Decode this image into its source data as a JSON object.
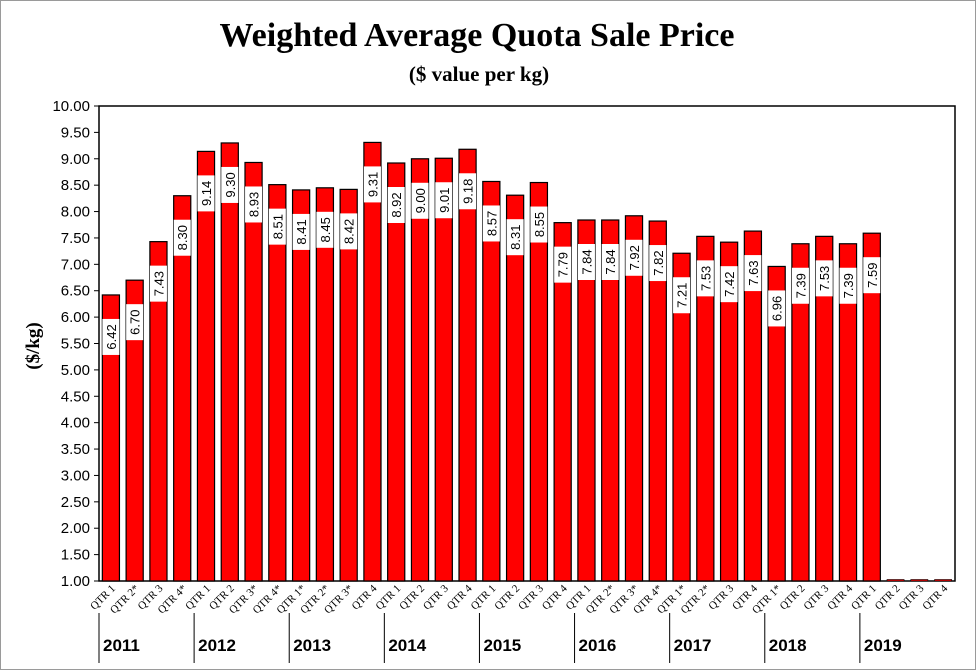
{
  "chart_data": {
    "type": "bar",
    "title": "Weighted Average Quota Sale Price",
    "subtitle": "($ value per kg)",
    "ylabel": "($/kg)",
    "xlabel": "",
    "ylim": [
      1.0,
      10.0
    ],
    "ytick_step": 0.5,
    "grid": false,
    "legend": "none",
    "bar_color": "#ff0000",
    "categories": [
      "QTR 1",
      "QTR 2*",
      "QTR 3",
      "QTR 4*",
      "QTR 1",
      "QTR 2",
      "QTR 3*",
      "QTR 4*",
      "QTR 1*",
      "QTR 2*",
      "QTR 3*",
      "QTR 4",
      "QTR 1",
      "QTR 2",
      "QTR 3",
      "QTR 4",
      "QTR 1",
      "QTR 2",
      "QTR 3",
      "QTR 4",
      "QTR 1",
      "QTR 2*",
      "QTR 3*",
      "QTR 4*",
      "QTR 1*",
      "QTR 2*",
      "QTR 3",
      "QTR 4",
      "QTR 1*",
      "QTR 2",
      "QTR 3",
      "QTR 4",
      "QTR 1",
      "QTR 2",
      "QTR 3",
      "QTR 4"
    ],
    "values": [
      6.42,
      6.7,
      7.43,
      8.3,
      9.14,
      9.3,
      8.93,
      8.51,
      8.41,
      8.45,
      8.42,
      9.31,
      8.92,
      9.0,
      9.01,
      9.18,
      8.57,
      8.31,
      8.55,
      7.79,
      7.84,
      7.84,
      7.92,
      7.82,
      7.21,
      7.53,
      7.42,
      7.63,
      6.96,
      7.39,
      7.53,
      7.39,
      7.59,
      null,
      null,
      null
    ],
    "value_labels": [
      "6.42",
      "6.70",
      "7.43",
      "8.30",
      "9.14",
      "9.30",
      "8.93",
      "8.51",
      "8.41",
      "8.45",
      "8.42",
      "9.31",
      "8.92",
      "9.00",
      "9.01",
      "9.18",
      "8.57",
      "8.31",
      "8.55",
      "7.79",
      "7.84",
      "7.84",
      "7.92",
      "7.82",
      "7.21",
      "7.53",
      "7.42",
      "7.63",
      "6.96",
      "7.39",
      "7.53",
      "7.39",
      "7.59",
      null,
      null,
      null
    ],
    "years": [
      {
        "label": "2011",
        "start": 0
      },
      {
        "label": "2012",
        "start": 4
      },
      {
        "label": "2013",
        "start": 8
      },
      {
        "label": "2014",
        "start": 12
      },
      {
        "label": "2015",
        "start": 16
      },
      {
        "label": "2016",
        "start": 20
      },
      {
        "label": "2017",
        "start": 24
      },
      {
        "label": "2018",
        "start": 28
      },
      {
        "label": "2019",
        "start": 32
      }
    ]
  }
}
